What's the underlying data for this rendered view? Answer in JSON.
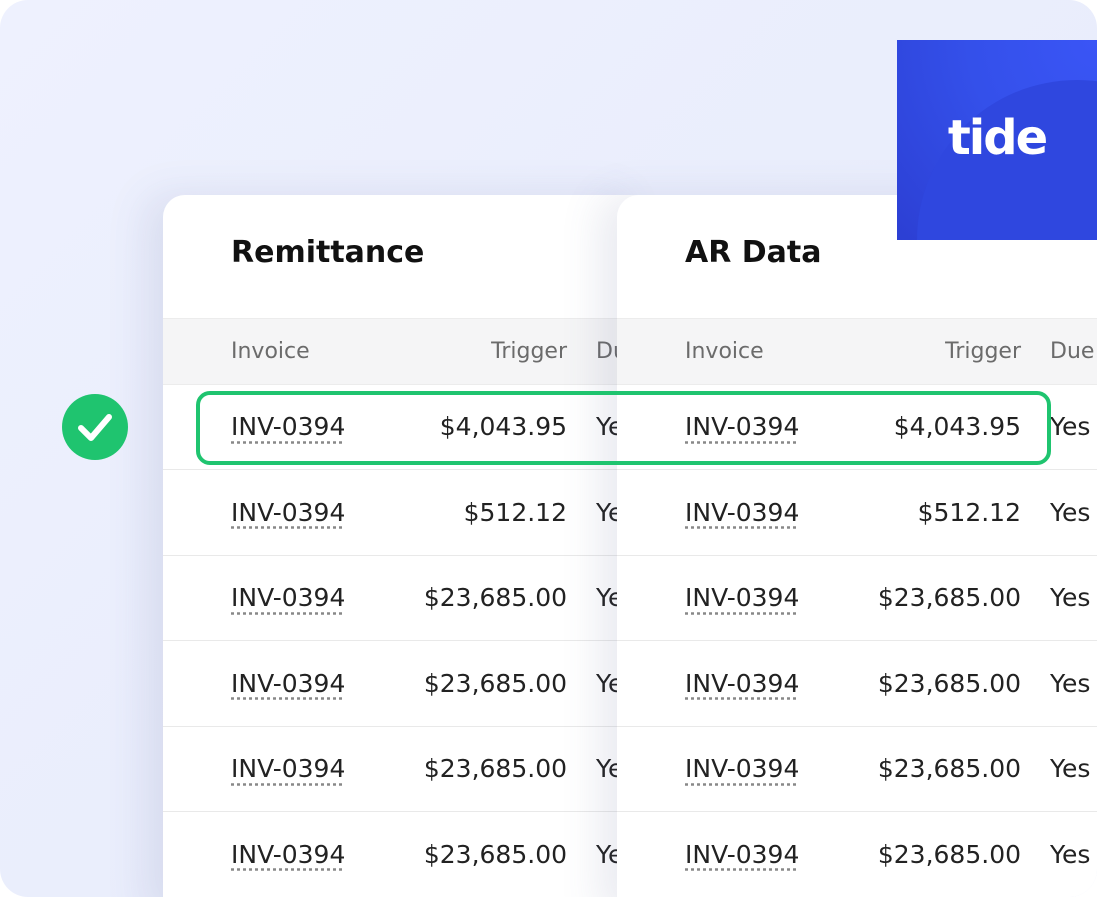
{
  "logo": {
    "text": "tide"
  },
  "panels": [
    {
      "title": "Remittance",
      "columns": [
        "Invoice",
        "Trigger",
        "Due"
      ],
      "rows": [
        [
          "INV-0394",
          "$4,043.95",
          "Yes"
        ],
        [
          "INV-0394",
          "$512.12",
          "Yes"
        ],
        [
          "INV-0394",
          "$23,685.00",
          "Yes"
        ],
        [
          "INV-0394",
          "$23,685.00",
          "Yes"
        ],
        [
          "INV-0394",
          "$23,685.00",
          "Yes"
        ],
        [
          "INV-0394",
          "$23,685.00",
          "Yes"
        ]
      ]
    },
    {
      "title": "AR Data",
      "columns": [
        "Invoice",
        "Trigger",
        "Due"
      ],
      "rows": [
        [
          "INV-0394",
          "$4,043.95",
          "Yes"
        ],
        [
          "INV-0394",
          "$512.12",
          "Yes"
        ],
        [
          "INV-0394",
          "$23,685.00",
          "Yes"
        ],
        [
          "INV-0394",
          "$23,685.00",
          "Yes"
        ],
        [
          "INV-0394",
          "$23,685.00",
          "Yes"
        ],
        [
          "INV-0394",
          "$23,685.00",
          "Yes"
        ]
      ]
    }
  ]
}
